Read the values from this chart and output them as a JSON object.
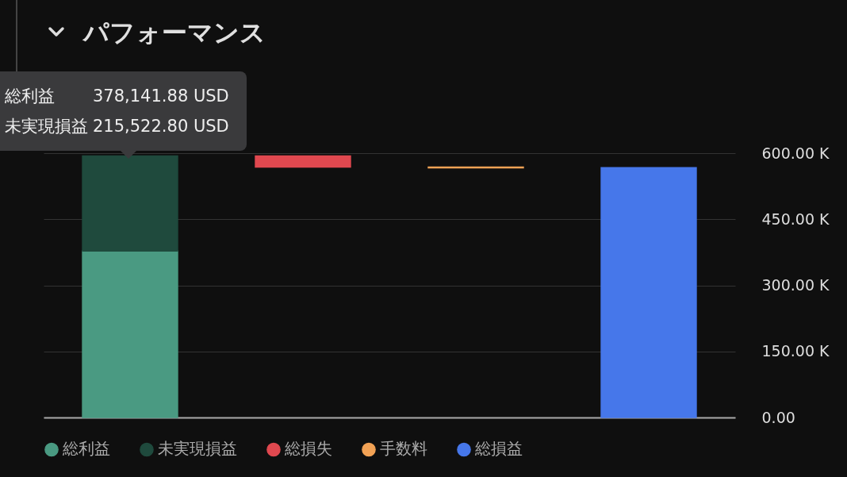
{
  "chart_data": {
    "type": "bar",
    "title": "パフォーマンス",
    "categories": [
      null,
      null,
      null,
      null
    ],
    "stacked": true,
    "series": [
      {
        "name": "総利益",
        "color": "#4a9a82",
        "values": [
          378141.88,
          null,
          null,
          null
        ]
      },
      {
        "name": "未実現損益",
        "color": "#1f4a3d",
        "values": [
          215522.8,
          null,
          null,
          null
        ]
      },
      {
        "name": "総損失",
        "color": "#e0484f",
        "values": [
          null,
          -25000,
          null,
          null
        ],
        "base": [
          null,
          593664.68,
          null,
          null
        ]
      },
      {
        "name": "手数料",
        "color": "#f2a255",
        "values": [
          null,
          null,
          -2000,
          null
        ],
        "base": [
          null,
          null,
          568664.68,
          null
        ]
      },
      {
        "name": "総損益",
        "color": "#4677ea",
        "values": [
          null,
          null,
          null,
          567000
        ]
      }
    ],
    "ylim": [
      0,
      600000
    ],
    "yticks": [
      {
        "value": 0,
        "label": "0.00"
      },
      {
        "value": 150000,
        "label": "150.00 K"
      },
      {
        "value": 300000,
        "label": "300.00 K"
      },
      {
        "value": 450000,
        "label": "450.00 K"
      },
      {
        "value": 600000,
        "label": "600.00 K"
      }
    ],
    "annotations": [
      "総利益",
      "378,141.88 USD",
      "未実現損益",
      "215,522.80 USD"
    ],
    "grid": "y",
    "legend": "bottom",
    "tick_labels": "y"
  }
}
